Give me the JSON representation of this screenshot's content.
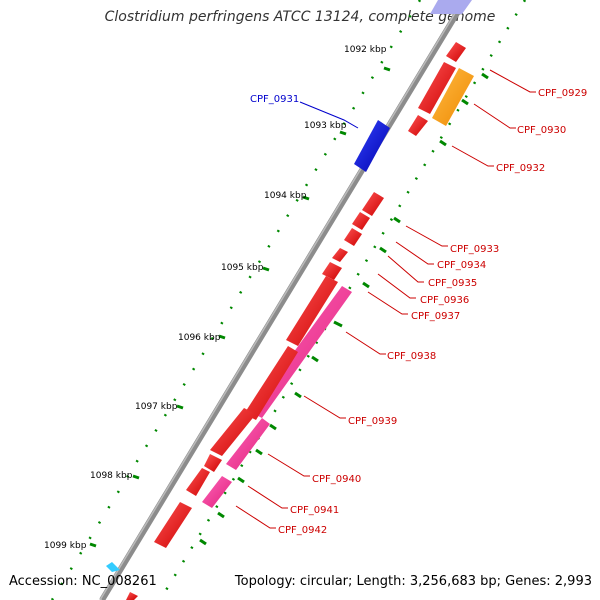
{
  "title": "Clostridium perfringens ATCC 13124, complete genome",
  "accession_text": "Accession: NC_008261",
  "topology_text": "Topology: circular; Length: 3,256,683 bp; Genes: 2,993",
  "kbp_labels": [
    "1092 kbp",
    "1093 kbp",
    "1094 kbp",
    "1095 kbp",
    "1096 kbp",
    "1097 kbp",
    "1098 kbp",
    "1099 kbp"
  ],
  "genes": [
    {
      "name": "CPF_0929",
      "color": "#cc0000"
    },
    {
      "name": "CPF_0930",
      "color": "#cc0000"
    },
    {
      "name": "CPF_0931",
      "color": "#0000cc"
    },
    {
      "name": "CPF_0932",
      "color": "#cc0000"
    },
    {
      "name": "CPF_0933",
      "color": "#cc0000"
    },
    {
      "name": "CPF_0934",
      "color": "#cc0000"
    },
    {
      "name": "CPF_0935",
      "color": "#cc0000"
    },
    {
      "name": "CPF_0936",
      "color": "#cc0000"
    },
    {
      "name": "CPF_0937",
      "color": "#cc0000"
    },
    {
      "name": "CPF_0938",
      "color": "#cc0000"
    },
    {
      "name": "CPF_0939",
      "color": "#cc0000"
    },
    {
      "name": "CPF_0940",
      "color": "#cc0000"
    },
    {
      "name": "CPF_0941",
      "color": "#cc0000"
    },
    {
      "name": "CPF_0942",
      "color": "#cc0000"
    }
  ],
  "colors": {
    "backbone": "#8c8c8c",
    "cds": "#ff0000",
    "rna": "#ff3399",
    "orange": "#ff9900",
    "blue": "#0000ee",
    "cyan": "#33ccff",
    "gc": "#008800"
  }
}
